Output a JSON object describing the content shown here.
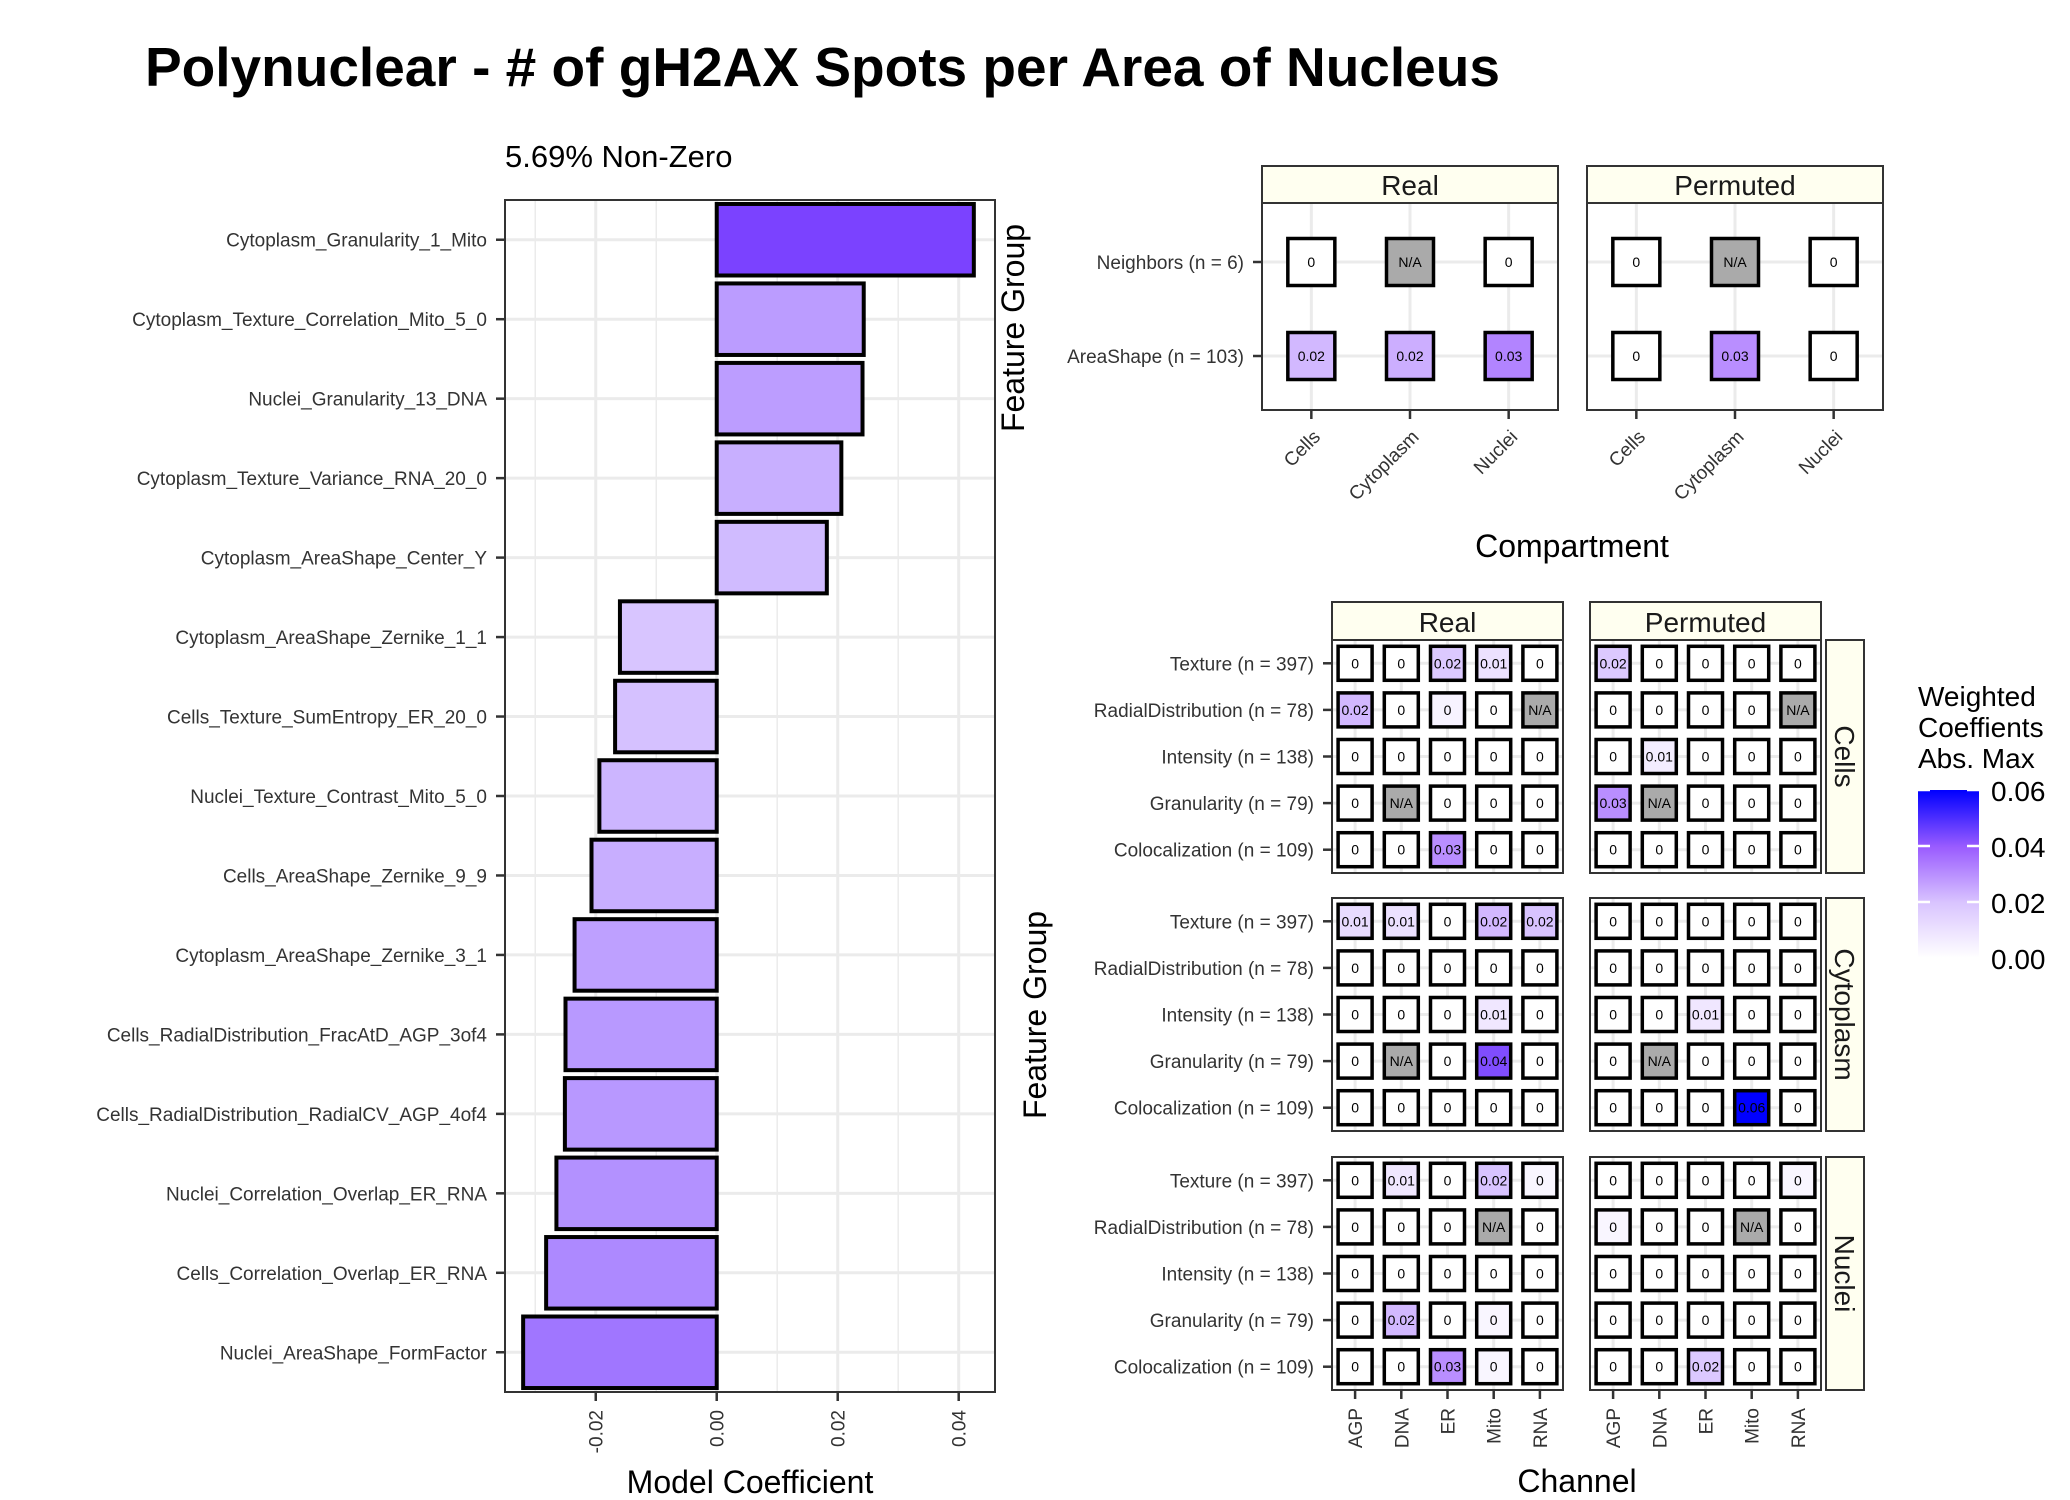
{
  "title": "Polynuclear - # of gH2AX Spots per Area of Nucleus",
  "colors": {
    "scale_low": "#ffffff",
    "scale_high": "#0000ff",
    "bar_low": "#dccbff",
    "bar_high": "#7b42ff",
    "na_fill": "#aaaaaa",
    "strip_fill": "#fffff0",
    "grid": "#ebebeb"
  },
  "chart_data": [
    {
      "type": "bar",
      "orientation": "horizontal",
      "subtitle": "5.69% Non-Zero",
      "xlabel": "Model Coefficient",
      "ylabel": "",
      "xlim": [
        -0.035,
        0.046
      ],
      "xticks": [
        -0.02,
        0.0,
        0.02,
        0.04
      ],
      "xtick_labels": [
        "-0.02",
        "0.00",
        "0.02",
        "0.04"
      ],
      "grid": true,
      "categories": [
        "Cytoplasm_Granularity_1_Mito",
        "Cytoplasm_Texture_Correlation_Mito_5_0",
        "Nuclei_Granularity_13_DNA",
        "Cytoplasm_Texture_Variance_RNA_20_0",
        "Cytoplasm_AreaShape_Center_Y",
        "Cytoplasm_AreaShape_Zernike_1_1",
        "Cells_Texture_SumEntropy_ER_20_0",
        "Nuclei_Texture_Contrast_Mito_5_0",
        "Cells_AreaShape_Zernike_9_9",
        "Cytoplasm_AreaShape_Zernike_3_1",
        "Cells_RadialDistribution_FracAtD_AGP_3of4",
        "Cells_RadialDistribution_RadialCV_AGP_4of4",
        "Nuclei_Correlation_Overlap_ER_RNA",
        "Cells_Correlation_Overlap_ER_RNA",
        "Nuclei_AreaShape_FormFactor"
      ],
      "values": [
        0.0425,
        0.0243,
        0.0241,
        0.0206,
        0.0182,
        -0.016,
        -0.0168,
        -0.0194,
        -0.0207,
        -0.0235,
        -0.025,
        -0.0251,
        -0.0265,
        -0.0282,
        -0.032
      ]
    },
    {
      "type": "heatmap",
      "title": "",
      "xlabel": "Compartment",
      "ylabel": "Feature Group",
      "facets": [
        "Real",
        "Permuted"
      ],
      "x": [
        "Cells",
        "Cytoplasm",
        "Nuclei"
      ],
      "y": [
        "Neighbors (n = 6)",
        "AreaShape (n = 103)"
      ],
      "cells": {
        "Real": [
          [
            "0",
            "N/A",
            "0"
          ],
          [
            "0.02",
            "0.02",
            "0.03"
          ]
        ],
        "Permuted": [
          [
            "0",
            "N/A",
            "0"
          ],
          [
            "0",
            "0.03",
            "0"
          ]
        ]
      },
      "values": {
        "Real": [
          [
            0,
            null,
            0
          ],
          [
            0.022,
            0.024,
            0.032
          ]
        ],
        "Permuted": [
          [
            0,
            null,
            0
          ],
          [
            0,
            0.03,
            0
          ]
        ]
      }
    },
    {
      "type": "heatmap",
      "title": "",
      "xlabel": "Channel",
      "ylabel": "Feature Group",
      "facets": [
        "Real",
        "Permuted"
      ],
      "rows": [
        "Cells",
        "Cytoplasm",
        "Nuclei"
      ],
      "x": [
        "AGP",
        "DNA",
        "ER",
        "Mito",
        "RNA"
      ],
      "y": [
        "Texture (n = 397)",
        "RadialDistribution (n = 78)",
        "Intensity (n = 138)",
        "Granularity (n = 79)",
        "Colocalization (n = 109)"
      ],
      "cells": {
        "Cells": {
          "Real": [
            [
              "0",
              "0",
              "0.02",
              "0.01",
              "0"
            ],
            [
              "0.02",
              "0",
              "0",
              "0",
              "N/A"
            ],
            [
              "0",
              "0",
              "0",
              "0",
              "0"
            ],
            [
              "0",
              "N/A",
              "0",
              "0",
              "0"
            ],
            [
              "0",
              "0",
              "0.03",
              "0",
              "0"
            ]
          ],
          "Permuted": [
            [
              "0.02",
              "0",
              "0",
              "0",
              "0"
            ],
            [
              "0",
              "0",
              "0",
              "0",
              "N/A"
            ],
            [
              "0",
              "0.01",
              "0",
              "0",
              "0"
            ],
            [
              "0.03",
              "N/A",
              "0",
              "0",
              "0"
            ],
            [
              "0",
              "0",
              "0",
              "0",
              "0"
            ]
          ]
        },
        "Cytoplasm": {
          "Real": [
            [
              "0.01",
              "0.01",
              "0",
              "0.02",
              "0.02"
            ],
            [
              "0",
              "0",
              "0",
              "0",
              "0"
            ],
            [
              "0",
              "0",
              "0",
              "0.01",
              "0"
            ],
            [
              "0",
              "N/A",
              "0",
              "0.04",
              "0"
            ],
            [
              "0",
              "0",
              "0",
              "0",
              "0"
            ]
          ],
          "Permuted": [
            [
              "0",
              "0",
              "0",
              "0",
              "0"
            ],
            [
              "0",
              "0",
              "0",
              "0",
              "0"
            ],
            [
              "0",
              "0",
              "0.01",
              "0",
              "0"
            ],
            [
              "0",
              "N/A",
              "0",
              "0",
              "0"
            ],
            [
              "0",
              "0",
              "0",
              "0.06",
              "0"
            ]
          ]
        },
        "Nuclei": {
          "Real": [
            [
              "0",
              "0.01",
              "0",
              "0.02",
              "0"
            ],
            [
              "0",
              "0",
              "0",
              "N/A",
              "0"
            ],
            [
              "0",
              "0",
              "0",
              "0",
              "0"
            ],
            [
              "0",
              "0.02",
              "0",
              "0",
              "0"
            ],
            [
              "0",
              "0",
              "0.03",
              "0",
              "0"
            ]
          ],
          "Permuted": [
            [
              "0",
              "0",
              "0",
              "0",
              "0"
            ],
            [
              "0",
              "0",
              "0",
              "N/A",
              "0"
            ],
            [
              "0",
              "0",
              "0",
              "0",
              "0"
            ],
            [
              "0",
              "0",
              "0",
              "0",
              "0"
            ],
            [
              "0",
              "0",
              "0.02",
              "0",
              "0"
            ]
          ]
        }
      },
      "values": {
        "Cells": {
          "Real": [
            [
              0,
              0,
              0.018,
              0.01,
              0
            ],
            [
              0.022,
              0,
              0.004,
              0,
              null
            ],
            [
              0,
              0,
              0,
              0,
              0
            ],
            [
              0,
              null,
              0,
              0,
              0
            ],
            [
              0,
              0,
              0.03,
              0,
              0
            ]
          ],
          "Permuted": [
            [
              0.018,
              0,
              0,
              0,
              0
            ],
            [
              0,
              0,
              0,
              0,
              null
            ],
            [
              0,
              0.006,
              0,
              0,
              0
            ],
            [
              0.03,
              null,
              0,
              0,
              0
            ],
            [
              0,
              0,
              0,
              0,
              0
            ]
          ]
        },
        "Cytoplasm": {
          "Real": [
            [
              0.012,
              0.01,
              0,
              0.022,
              0.02
            ],
            [
              0,
              0,
              0,
              0,
              0
            ],
            [
              0,
              0,
              0,
              0.008,
              0
            ],
            [
              0,
              null,
              0,
              0.043,
              0
            ],
            [
              0,
              0,
              0,
              0,
              0
            ]
          ],
          "Permuted": [
            [
              0,
              0,
              0,
              0,
              0
            ],
            [
              0,
              0,
              0,
              0,
              0
            ],
            [
              0,
              0,
              0.008,
              0,
              0
            ],
            [
              0,
              null,
              0,
              0,
              0
            ],
            [
              0,
              0,
              0,
              0.06,
              0
            ]
          ]
        },
        "Nuclei": {
          "Real": [
            [
              0,
              0.008,
              0,
              0.02,
              0.003
            ],
            [
              0,
              0,
              0,
              null,
              0
            ],
            [
              0,
              0,
              0,
              0,
              0
            ],
            [
              0,
              0.022,
              0,
              0.003,
              0
            ],
            [
              0,
              0,
              0.03,
              0.003,
              0
            ]
          ],
          "Permuted": [
            [
              0,
              0,
              0,
              0,
              0.003
            ],
            [
              0.003,
              0,
              0,
              null,
              0
            ],
            [
              0,
              0,
              0,
              0,
              0
            ],
            [
              0,
              0,
              0,
              0,
              0
            ],
            [
              0,
              0,
              0.018,
              0,
              0
            ]
          ]
        }
      },
      "legend": {
        "title": [
          "Weighted",
          "Coeffients",
          "Abs. Max"
        ],
        "range": [
          0,
          0.06
        ],
        "ticks": [
          0.0,
          0.02,
          0.04,
          0.06
        ],
        "tick_labels": [
          "0.00",
          "0.02",
          "0.04",
          "0.06"
        ],
        "placement": "right"
      }
    }
  ]
}
